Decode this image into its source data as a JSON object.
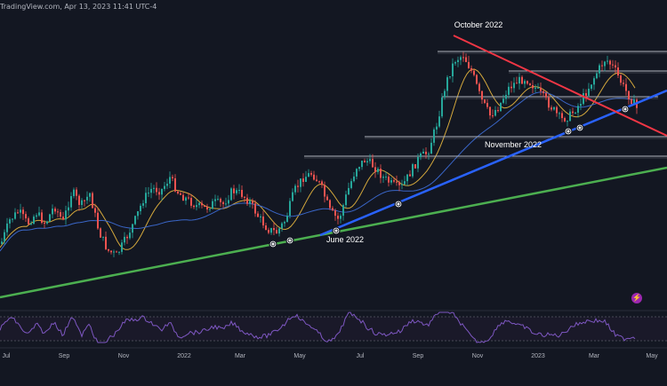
{
  "header": {
    "source_caption": "TradingView.com, Apr 13, 2023 11:41 UTC-4"
  },
  "colors": {
    "background": "#131722",
    "candle_up": "#26a69a",
    "candle_down": "#ef5350",
    "ma_fast": "#d4a83c",
    "ma_slow": "#3a66c8",
    "trend_red": "#f23645",
    "trend_blue": "#2962ff",
    "trend_green": "#4caf50",
    "level_lines": "#b2b5be",
    "rsi_line": "#7e57c2",
    "axis_text": "#b2b5be"
  },
  "icons": {
    "flash": "lightning-icon"
  },
  "chart_data": {
    "type": "candlestick",
    "title": "",
    "xlabel": "",
    "ylabel": "",
    "grid": false,
    "x_ticks": [
      "Jul",
      "Sep",
      "Nov",
      "2022",
      "Mar",
      "May",
      "Jul",
      "Sep",
      "Nov",
      "2023",
      "Mar",
      "May"
    ],
    "annotations": [
      {
        "text": "October 2022"
      },
      {
        "text": "November 2022"
      },
      {
        "text": "June 2022"
      }
    ],
    "rsi": {
      "overbought": 70,
      "oversold": 30
    }
  }
}
